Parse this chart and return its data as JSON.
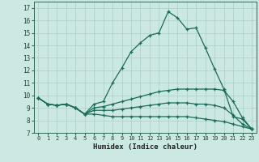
{
  "xlabel": "Humidex (Indice chaleur)",
  "xlim": [
    -0.5,
    23.5
  ],
  "ylim": [
    7,
    17.5
  ],
  "yticks": [
    7,
    8,
    9,
    10,
    11,
    12,
    13,
    14,
    15,
    16,
    17
  ],
  "xticks": [
    0,
    1,
    2,
    3,
    4,
    5,
    6,
    7,
    8,
    9,
    10,
    11,
    12,
    13,
    14,
    15,
    16,
    17,
    18,
    19,
    20,
    21,
    22,
    23
  ],
  "bg_color": "#cce8e2",
  "grid_color": "#aacfc8",
  "line_color": "#1a6b5a",
  "line1": [
    9.8,
    9.3,
    9.2,
    9.3,
    9.0,
    8.5,
    9.3,
    9.5,
    11.0,
    12.2,
    13.5,
    14.2,
    14.8,
    15.0,
    16.7,
    16.2,
    15.3,
    15.4,
    13.8,
    12.1,
    10.5,
    8.3,
    8.1,
    7.3
  ],
  "line2": [
    9.8,
    9.3,
    9.2,
    9.3,
    9.0,
    8.5,
    9.0,
    9.1,
    9.3,
    9.5,
    9.7,
    9.9,
    10.1,
    10.3,
    10.4,
    10.5,
    10.5,
    10.5,
    10.5,
    10.5,
    10.4,
    9.5,
    8.2,
    7.3
  ],
  "line3": [
    9.8,
    9.3,
    9.2,
    9.3,
    9.0,
    8.5,
    8.8,
    8.8,
    8.8,
    8.9,
    9.0,
    9.1,
    9.2,
    9.3,
    9.4,
    9.4,
    9.4,
    9.3,
    9.3,
    9.2,
    9.0,
    8.4,
    7.7,
    7.3
  ],
  "line4": [
    9.8,
    9.3,
    9.2,
    9.3,
    9.0,
    8.5,
    8.5,
    8.4,
    8.3,
    8.3,
    8.3,
    8.3,
    8.3,
    8.3,
    8.3,
    8.3,
    8.3,
    8.2,
    8.1,
    8.0,
    7.9,
    7.7,
    7.5,
    7.3
  ]
}
